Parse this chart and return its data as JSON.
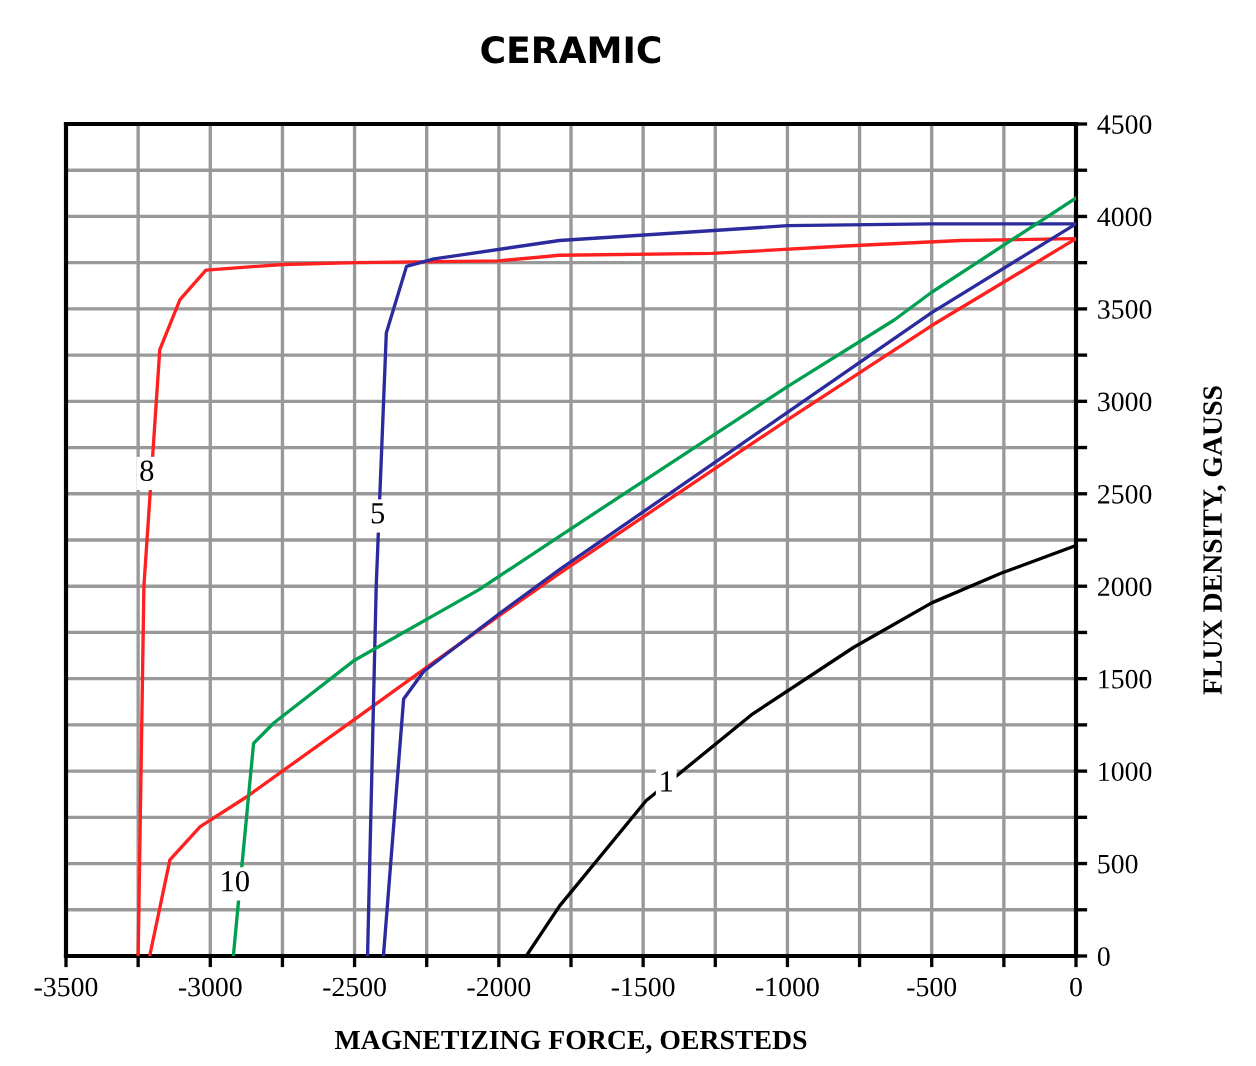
{
  "chart_data": {
    "type": "line",
    "title": "CERAMIC",
    "xlabel": "MAGNETIZING FORCE, OERSTEDS",
    "ylabel": "FLUX DENSITY, GAUSS",
    "xlim": [
      -3500,
      0
    ],
    "ylim": [
      0,
      4500
    ],
    "xticks": [
      -3500,
      {
        "value": -3250,
        "label": null
      },
      -3000,
      {
        "value": -2750,
        "label": null
      },
      -2500,
      {
        "value": -2250,
        "label": null
      },
      -2000,
      {
        "value": -1750,
        "label": null
      },
      -1500,
      {
        "value": -1250,
        "label": null
      },
      -1000,
      {
        "value": -750,
        "label": null
      },
      -500,
      {
        "value": -250,
        "label": null
      },
      0
    ],
    "yticks": [
      0,
      {
        "value": 250,
        "label": null
      },
      500,
      {
        "value": 750,
        "label": null
      },
      1000,
      {
        "value": 1250,
        "label": null
      },
      1500,
      {
        "value": 1750,
        "label": null
      },
      2000,
      {
        "value": 2250,
        "label": null
      },
      2500,
      {
        "value": 2750,
        "label": null
      },
      3000,
      {
        "value": 3250,
        "label": null
      },
      3500,
      {
        "value": 3750,
        "label": null
      },
      4000,
      {
        "value": 4250,
        "label": null
      },
      4500
    ],
    "grid": true,
    "marker": "none",
    "line_style": "solid",
    "series": [
      {
        "color": "#ff2020",
        "x": [
          -3250,
          -3230,
          -3175,
          -3105,
          -3015,
          -2750,
          -2500,
          -2000,
          -1790,
          -1260,
          -800,
          -400,
          0
        ],
        "values": [
          0,
          2000,
          3280,
          3550,
          3710,
          3740,
          3750,
          3760,
          3790,
          3800,
          3840,
          3870,
          3880
        ]
      },
      {
        "color": "#ff2020",
        "x": [
          -3210,
          -3140,
          -3035,
          -2875,
          -2500,
          -2260,
          -2000,
          -1790,
          -1000,
          -500,
          0
        ],
        "values": [
          0,
          520,
          700,
          860,
          1280,
          1550,
          1840,
          2070,
          2900,
          3410,
          3880
        ]
      },
      {
        "color": "#2b2b9e",
        "x": [
          -2455,
          -2425,
          -2390,
          -2320,
          -2225,
          -1790,
          -1000,
          -500,
          0
        ],
        "values": [
          0,
          2000,
          3370,
          3730,
          3770,
          3870,
          3950,
          3960,
          3960
        ]
      },
      {
        "color": "#2b2b9e",
        "x": [
          -2400,
          -2330,
          -2260,
          -2000,
          -1790,
          -1000,
          -500,
          0
        ],
        "values": [
          0,
          1390,
          1540,
          1850,
          2090,
          2940,
          3480,
          3960
        ]
      },
      {
        "color": "#00a050",
        "x": [
          -2920,
          -2905,
          -2850,
          -2780,
          -2500,
          -2070,
          -1790,
          -1000,
          -630,
          -500,
          0
        ],
        "values": [
          0,
          250,
          1150,
          1260,
          1600,
          1980,
          2270,
          3080,
          3440,
          3590,
          4100
        ]
      },
      {
        "color": "#000000",
        "x": [
          -1905,
          -1790,
          -1490,
          -1120,
          -770,
          -500,
          -260,
          0
        ],
        "values": [
          0,
          270,
          840,
          1310,
          1670,
          1910,
          2070,
          2220
        ]
      }
    ],
    "annotations": [
      {
        "text": "8",
        "x": -3220,
        "y": 2610
      },
      {
        "text": "5",
        "x": -2420,
        "y": 2380
      },
      {
        "text": "10",
        "x": -2915,
        "y": 390
      },
      {
        "text": "1",
        "x": -1420,
        "y": 930
      }
    ]
  }
}
